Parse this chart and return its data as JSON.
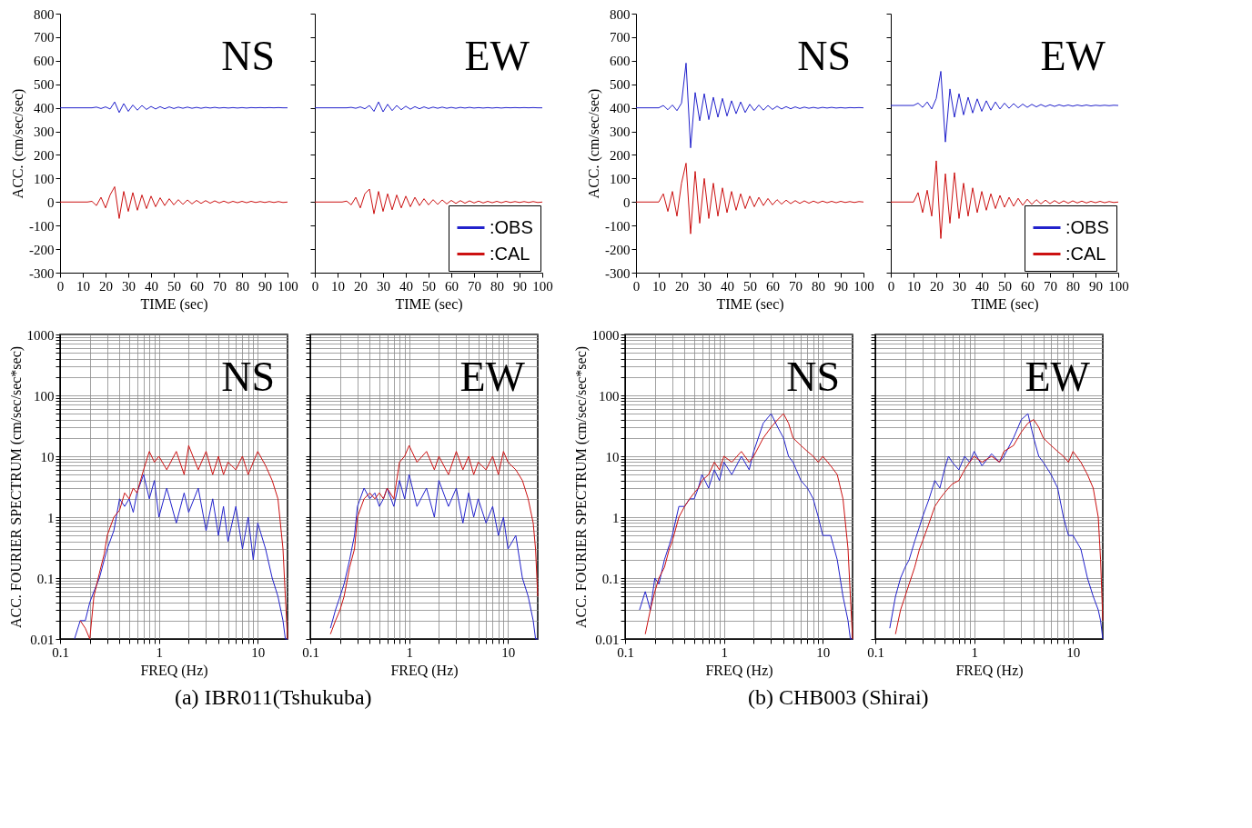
{
  "chart_data": [
    {
      "type": "line",
      "title": "NS",
      "xlabel": "TIME (sec)",
      "ylabel": "ACC. (cm/sec/sec)",
      "xlim": [
        0,
        100
      ],
      "ylim": [
        -300,
        800
      ],
      "xticks": [
        0,
        10,
        20,
        30,
        40,
        50,
        60,
        70,
        80,
        90,
        100
      ],
      "yticks": [
        -300,
        -200,
        -100,
        0,
        100,
        200,
        300,
        400,
        500,
        600,
        700,
        800
      ],
      "x": [
        0,
        2,
        4,
        6,
        8,
        10,
        12,
        14,
        16,
        18,
        20,
        22,
        24,
        26,
        28,
        30,
        32,
        34,
        36,
        38,
        40,
        42,
        44,
        46,
        48,
        50,
        52,
        54,
        56,
        58,
        60,
        62,
        64,
        66,
        68,
        70,
        72,
        74,
        76,
        78,
        80,
        82,
        84,
        86,
        88,
        90,
        92,
        94,
        96,
        98,
        100
      ],
      "series": [
        {
          "color": "#2222cc",
          "values": [
            400,
            400,
            400,
            400,
            400,
            400,
            400,
            400,
            403,
            397,
            404,
            395,
            425,
            380,
            418,
            385,
            412,
            390,
            410,
            393,
            406,
            395,
            405,
            396,
            404,
            397,
            403,
            398,
            403,
            398,
            402,
            398,
            402,
            399,
            402,
            399,
            401,
            399,
            401,
            399,
            401,
            399,
            401,
            400,
            401,
            400,
            401,
            400,
            401,
            400,
            400
          ]
        },
        {
          "color": "#cc1111",
          "values": [
            0,
            0,
            0,
            0,
            0,
            0,
            0,
            3,
            -15,
            20,
            -25,
            30,
            65,
            -70,
            45,
            -40,
            40,
            -35,
            30,
            -28,
            25,
            -20,
            18,
            -15,
            14,
            -12,
            10,
            -10,
            9,
            -8,
            7,
            -6,
            6,
            -5,
            5,
            -4,
            4,
            -4,
            3,
            -3,
            3,
            -3,
            3,
            -2,
            2,
            -2,
            2,
            -2,
            2,
            -2,
            0
          ]
        }
      ]
    },
    {
      "type": "line",
      "title": "EW",
      "xlabel": "TIME (sec)",
      "xlim": [
        0,
        100
      ],
      "ylim": [
        -300,
        800
      ],
      "xticks": [
        0,
        10,
        20,
        30,
        40,
        50,
        60,
        70,
        80,
        90,
        100
      ],
      "yticks": [
        -300,
        -200,
        -100,
        0,
        100,
        200,
        300,
        400,
        500,
        600,
        700,
        800
      ],
      "tick_labels": "x",
      "legend": "bottom right",
      "x": [
        0,
        2,
        4,
        6,
        8,
        10,
        12,
        14,
        16,
        18,
        20,
        22,
        24,
        26,
        28,
        30,
        32,
        34,
        36,
        38,
        40,
        42,
        44,
        46,
        48,
        50,
        52,
        54,
        56,
        58,
        60,
        62,
        64,
        66,
        68,
        70,
        72,
        74,
        76,
        78,
        80,
        82,
        84,
        86,
        88,
        90,
        92,
        94,
        96,
        98,
        100
      ],
      "series": [
        {
          "name": ":OBS",
          "color": "#2222cc",
          "values": [
            400,
            400,
            400,
            400,
            400,
            400,
            400,
            400,
            402,
            398,
            404,
            396,
            410,
            385,
            425,
            383,
            415,
            388,
            410,
            392,
            407,
            394,
            405,
            396,
            404,
            397,
            403,
            398,
            403,
            398,
            402,
            398,
            402,
            399,
            402,
            399,
            401,
            399,
            401,
            399,
            401,
            399,
            401,
            400,
            401,
            400,
            401,
            400,
            401,
            400,
            400
          ]
        },
        {
          "name": ":CAL",
          "color": "#cc1111",
          "values": [
            0,
            0,
            0,
            0,
            0,
            0,
            0,
            4,
            -12,
            20,
            -25,
            35,
            55,
            -50,
            45,
            -40,
            35,
            -33,
            30,
            -25,
            25,
            -20,
            20,
            -15,
            14,
            -12,
            10,
            -10,
            9,
            -8,
            7,
            -6,
            6,
            -5,
            5,
            -4,
            4,
            -4,
            3,
            -3,
            3,
            -3,
            3,
            -2,
            2,
            -2,
            2,
            -2,
            2,
            -2,
            0
          ]
        }
      ]
    },
    {
      "type": "line",
      "title": "NS",
      "xlabel": "TIME (sec)",
      "ylabel": "ACC. (cm/sec/sec)",
      "xlim": [
        0,
        100
      ],
      "ylim": [
        -300,
        800
      ],
      "xticks": [
        0,
        10,
        20,
        30,
        40,
        50,
        60,
        70,
        80,
        90,
        100
      ],
      "yticks": [
        -300,
        -200,
        -100,
        0,
        100,
        200,
        300,
        400,
        500,
        600,
        700,
        800
      ],
      "x": [
        0,
        2,
        4,
        6,
        8,
        10,
        12,
        14,
        16,
        18,
        20,
        22,
        24,
        26,
        28,
        30,
        32,
        34,
        36,
        38,
        40,
        42,
        44,
        46,
        48,
        50,
        52,
        54,
        56,
        58,
        60,
        62,
        64,
        66,
        68,
        70,
        72,
        74,
        76,
        78,
        80,
        82,
        84,
        86,
        88,
        90,
        92,
        94,
        96,
        98,
        100
      ],
      "series": [
        {
          "color": "#2222cc",
          "values": [
            400,
            400,
            400,
            400,
            400,
            400,
            410,
            392,
            412,
            388,
            420,
            590,
            230,
            465,
            345,
            460,
            350,
            445,
            360,
            440,
            365,
            430,
            375,
            425,
            380,
            415,
            388,
            412,
            390,
            410,
            393,
            407,
            395,
            405,
            396,
            404,
            397,
            403,
            398,
            402,
            398,
            402,
            399,
            402,
            399,
            401,
            399,
            401,
            400,
            401,
            400
          ]
        },
        {
          "color": "#cc1111",
          "values": [
            0,
            0,
            0,
            0,
            0,
            0,
            35,
            -40,
            45,
            -60,
            80,
            165,
            -135,
            130,
            -90,
            100,
            -70,
            80,
            -60,
            60,
            -45,
            45,
            -35,
            35,
            -28,
            25,
            -20,
            20,
            -15,
            15,
            -12,
            10,
            -9,
            8,
            -7,
            6,
            -6,
            5,
            -5,
            4,
            -4,
            4,
            -3,
            3,
            -3,
            3,
            -2,
            2,
            -2,
            2,
            0
          ]
        }
      ]
    },
    {
      "type": "line",
      "title": "EW",
      "xlabel": "TIME (sec)",
      "xlim": [
        0,
        100
      ],
      "ylim": [
        -300,
        800
      ],
      "xticks": [
        0,
        10,
        20,
        30,
        40,
        50,
        60,
        70,
        80,
        90,
        100
      ],
      "yticks": [
        -300,
        -200,
        -100,
        0,
        100,
        200,
        300,
        400,
        500,
        600,
        700,
        800
      ],
      "tick_labels": "x",
      "legend": "bottom right",
      "x": [
        0,
        2,
        4,
        6,
        8,
        10,
        12,
        14,
        16,
        18,
        20,
        22,
        24,
        26,
        28,
        30,
        32,
        34,
        36,
        38,
        40,
        42,
        44,
        46,
        48,
        50,
        52,
        54,
        56,
        58,
        60,
        62,
        64,
        66,
        68,
        70,
        72,
        74,
        76,
        78,
        80,
        82,
        84,
        86,
        88,
        90,
        92,
        94,
        96,
        98,
        100
      ],
      "series": [
        {
          "name": ":OBS",
          "color": "#2222cc",
          "values": [
            410,
            410,
            410,
            410,
            410,
            410,
            420,
            402,
            425,
            395,
            440,
            555,
            255,
            480,
            360,
            460,
            370,
            445,
            378,
            438,
            385,
            430,
            390,
            425,
            395,
            420,
            398,
            418,
            400,
            416,
            402,
            415,
            404,
            414,
            405,
            413,
            406,
            413,
            407,
            412,
            407,
            412,
            408,
            412,
            408,
            411,
            409,
            411,
            409,
            411,
            410
          ]
        },
        {
          "name": ":CAL",
          "color": "#cc1111",
          "values": [
            0,
            0,
            0,
            0,
            0,
            0,
            40,
            -45,
            50,
            -60,
            175,
            -155,
            120,
            -90,
            125,
            -70,
            80,
            -60,
            60,
            -45,
            45,
            -35,
            35,
            -28,
            28,
            -22,
            20,
            -18,
            16,
            -14,
            12,
            -10,
            10,
            -8,
            8,
            -7,
            6,
            -6,
            5,
            -5,
            5,
            -4,
            4,
            -4,
            3,
            -3,
            3,
            -3,
            2,
            -2,
            0
          ]
        }
      ]
    },
    {
      "type": "line",
      "title": "NS",
      "xlabel": "FREQ (Hz)",
      "ylabel": "ACC. FOURIER SPECTRUM (cm/sec/sec*sec)",
      "log": "xy",
      "grid": true,
      "xlim": [
        0.1,
        20
      ],
      "ylim": [
        0.01,
        1000
      ],
      "xticks": [
        0.1,
        {
          "value": 0.2,
          "label": null
        },
        {
          "value": 0.3,
          "label": null
        },
        {
          "value": 0.4,
          "label": null
        },
        {
          "value": 0.5,
          "label": null
        },
        {
          "value": 0.6,
          "label": null
        },
        {
          "value": 0.7,
          "label": null
        },
        {
          "value": 0.8,
          "label": null
        },
        {
          "value": 0.9,
          "label": null
        },
        1,
        {
          "value": 2,
          "label": null
        },
        {
          "value": 3,
          "label": null
        },
        {
          "value": 4,
          "label": null
        },
        {
          "value": 5,
          "label": null
        },
        {
          "value": 6,
          "label": null
        },
        {
          "value": 7,
          "label": null
        },
        {
          "value": 8,
          "label": null
        },
        {
          "value": 9,
          "label": null
        },
        10
      ],
      "yticks": [
        0.01,
        {
          "value": 0.02,
          "label": null
        },
        {
          "value": 0.03,
          "label": null
        },
        {
          "value": 0.04,
          "label": null
        },
        {
          "value": 0.05,
          "label": null
        },
        {
          "value": 0.06,
          "label": null
        },
        {
          "value": 0.07,
          "label": null
        },
        {
          "value": 0.08,
          "label": null
        },
        {
          "value": 0.09,
          "label": null
        },
        0.1,
        {
          "value": 0.2,
          "label": null
        },
        {
          "value": 0.3,
          "label": null
        },
        {
          "value": 0.4,
          "label": null
        },
        {
          "value": 0.5,
          "label": null
        },
        {
          "value": 0.6,
          "label": null
        },
        {
          "value": 0.7,
          "label": null
        },
        {
          "value": 0.8,
          "label": null
        },
        {
          "value": 0.9,
          "label": null
        },
        1,
        {
          "value": 2,
          "label": null
        },
        {
          "value": 3,
          "label": null
        },
        {
          "value": 4,
          "label": null
        },
        {
          "value": 5,
          "label": null
        },
        {
          "value": 6,
          "label": null
        },
        {
          "value": 7,
          "label": null
        },
        {
          "value": 8,
          "label": null
        },
        {
          "value": 9,
          "label": null
        },
        10,
        {
          "value": 20,
          "label": null
        },
        {
          "value": 30,
          "label": null
        },
        {
          "value": 40,
          "label": null
        },
        {
          "value": 50,
          "label": null
        },
        {
          "value": 60,
          "label": null
        },
        {
          "value": 70,
          "label": null
        },
        {
          "value": 80,
          "label": null
        },
        {
          "value": 90,
          "label": null
        },
        100,
        {
          "value": 200,
          "label": null
        },
        {
          "value": 300,
          "label": null
        },
        {
          "value": 400,
          "label": null
        },
        {
          "value": 500,
          "label": null
        },
        {
          "value": 600,
          "label": null
        },
        {
          "value": 700,
          "label": null
        },
        {
          "value": 800,
          "label": null
        },
        {
          "value": 900,
          "label": null
        },
        1000
      ],
      "x": [
        0.14,
        0.16,
        0.18,
        0.2,
        0.22,
        0.25,
        0.28,
        0.3,
        0.35,
        0.4,
        0.45,
        0.5,
        0.55,
        0.6,
        0.7,
        0.8,
        0.9,
        1,
        1.2,
        1.5,
        1.8,
        2,
        2.5,
        3,
        3.5,
        4,
        4.5,
        5,
        6,
        7,
        8,
        9,
        10,
        12,
        14,
        16,
        18,
        19,
        20
      ],
      "series": [
        {
          "color": "#2222cc",
          "values": [
            0.01,
            0.02,
            0.02,
            0.04,
            0.06,
            0.1,
            0.2,
            0.3,
            0.6,
            2,
            1.5,
            2,
            1.2,
            2.5,
            5,
            2,
            4,
            1,
            3,
            0.8,
            2.5,
            1.2,
            3,
            0.6,
            2,
            0.5,
            1.5,
            0.4,
            1.5,
            0.3,
            1,
            0.2,
            0.8,
            0.3,
            0.1,
            0.05,
            0.02,
            0.01,
            0.01
          ]
        },
        {
          "color": "#cc1111",
          "values": [
            null,
            0.02,
            0.015,
            0.01,
            0.05,
            0.12,
            0.25,
            0.5,
            1,
            1.3,
            2.5,
            2,
            3,
            2.5,
            6,
            12,
            8,
            10,
            6,
            12,
            5,
            15,
            6,
            12,
            5,
            10,
            5,
            8,
            6,
            10,
            5,
            8,
            12,
            7,
            4,
            2,
            0.3,
            0.05,
            0.01
          ]
        }
      ]
    },
    {
      "type": "line",
      "title": "EW",
      "xlabel": "FREQ (Hz)",
      "log": "xy",
      "grid": true,
      "tick_labels": "x",
      "xlim": [
        0.1,
        20
      ],
      "ylim": [
        0.01,
        1000
      ],
      "annotations": [
        "(a) IBR011(Tshukuba)"
      ],
      "xticks": [
        0.1,
        {
          "value": 0.2,
          "label": null
        },
        {
          "value": 0.3,
          "label": null
        },
        {
          "value": 0.4,
          "label": null
        },
        {
          "value": 0.5,
          "label": null
        },
        {
          "value": 0.6,
          "label": null
        },
        {
          "value": 0.7,
          "label": null
        },
        {
          "value": 0.8,
          "label": null
        },
        {
          "value": 0.9,
          "label": null
        },
        1,
        {
          "value": 2,
          "label": null
        },
        {
          "value": 3,
          "label": null
        },
        {
          "value": 4,
          "label": null
        },
        {
          "value": 5,
          "label": null
        },
        {
          "value": 6,
          "label": null
        },
        {
          "value": 7,
          "label": null
        },
        {
          "value": 8,
          "label": null
        },
        {
          "value": 9,
          "label": null
        },
        10
      ],
      "yticks": [
        0.01,
        {
          "value": 0.02,
          "label": null
        },
        {
          "value": 0.03,
          "label": null
        },
        {
          "value": 0.04,
          "label": null
        },
        {
          "value": 0.05,
          "label": null
        },
        {
          "value": 0.06,
          "label": null
        },
        {
          "value": 0.07,
          "label": null
        },
        {
          "value": 0.08,
          "label": null
        },
        {
          "value": 0.09,
          "label": null
        },
        0.1,
        {
          "value": 0.2,
          "label": null
        },
        {
          "value": 0.3,
          "label": null
        },
        {
          "value": 0.4,
          "label": null
        },
        {
          "value": 0.5,
          "label": null
        },
        {
          "value": 0.6,
          "label": null
        },
        {
          "value": 0.7,
          "label": null
        },
        {
          "value": 0.8,
          "label": null
        },
        {
          "value": 0.9,
          "label": null
        },
        1,
        {
          "value": 2,
          "label": null
        },
        {
          "value": 3,
          "label": null
        },
        {
          "value": 4,
          "label": null
        },
        {
          "value": 5,
          "label": null
        },
        {
          "value": 6,
          "label": null
        },
        {
          "value": 7,
          "label": null
        },
        {
          "value": 8,
          "label": null
        },
        {
          "value": 9,
          "label": null
        },
        10,
        {
          "value": 20,
          "label": null
        },
        {
          "value": 30,
          "label": null
        },
        {
          "value": 40,
          "label": null
        },
        {
          "value": 50,
          "label": null
        },
        {
          "value": 60,
          "label": null
        },
        {
          "value": 70,
          "label": null
        },
        {
          "value": 80,
          "label": null
        },
        {
          "value": 90,
          "label": null
        },
        100,
        {
          "value": 200,
          "label": null
        },
        {
          "value": 300,
          "label": null
        },
        {
          "value": 400,
          "label": null
        },
        {
          "value": 500,
          "label": null
        },
        {
          "value": 600,
          "label": null
        },
        {
          "value": 700,
          "label": null
        },
        {
          "value": 800,
          "label": null
        },
        {
          "value": 900,
          "label": null
        },
        1000
      ],
      "x": [
        0.16,
        0.18,
        0.2,
        0.22,
        0.25,
        0.28,
        0.3,
        0.35,
        0.4,
        0.45,
        0.5,
        0.55,
        0.6,
        0.7,
        0.8,
        0.9,
        1,
        1.2,
        1.5,
        1.8,
        2,
        2.5,
        3,
        3.5,
        4,
        4.5,
        5,
        6,
        7,
        8,
        9,
        10,
        12,
        14,
        16,
        18,
        19,
        20
      ],
      "series": [
        {
          "color": "#2222cc",
          "values": [
            0.015,
            0.03,
            0.05,
            0.08,
            0.2,
            0.5,
            1.5,
            3,
            2,
            2.5,
            1.5,
            2,
            3,
            1.5,
            4,
            2,
            5,
            1.5,
            3,
            1,
            4,
            1.5,
            3,
            0.8,
            2.5,
            1,
            2,
            0.8,
            1.5,
            0.5,
            1,
            0.3,
            0.5,
            0.1,
            0.05,
            0.02,
            0.01,
            0.01
          ]
        },
        {
          "color": "#cc1111",
          "values": [
            0.012,
            0.02,
            0.03,
            0.05,
            0.15,
            0.3,
            1,
            2,
            2.5,
            2,
            2.5,
            2,
            3,
            2,
            8,
            10,
            15,
            8,
            12,
            6,
            10,
            5,
            12,
            6,
            10,
            5,
            8,
            6,
            10,
            5,
            12,
            8,
            6,
            4,
            2,
            0.8,
            0.3,
            0.05
          ]
        }
      ]
    },
    {
      "type": "line",
      "title": "NS",
      "xlabel": "FREQ (Hz)",
      "ylabel": "ACC. FOURIER SPECTRUM (cm/sec/sec*sec)",
      "log": "xy",
      "grid": true,
      "xlim": [
        0.1,
        20
      ],
      "ylim": [
        0.01,
        1000
      ],
      "xticks": [
        0.1,
        {
          "value": 0.2,
          "label": null
        },
        {
          "value": 0.3,
          "label": null
        },
        {
          "value": 0.4,
          "label": null
        },
        {
          "value": 0.5,
          "label": null
        },
        {
          "value": 0.6,
          "label": null
        },
        {
          "value": 0.7,
          "label": null
        },
        {
          "value": 0.8,
          "label": null
        },
        {
          "value": 0.9,
          "label": null
        },
        1,
        {
          "value": 2,
          "label": null
        },
        {
          "value": 3,
          "label": null
        },
        {
          "value": 4,
          "label": null
        },
        {
          "value": 5,
          "label": null
        },
        {
          "value": 6,
          "label": null
        },
        {
          "value": 7,
          "label": null
        },
        {
          "value": 8,
          "label": null
        },
        {
          "value": 9,
          "label": null
        },
        10
      ],
      "yticks": [
        0.01,
        {
          "value": 0.02,
          "label": null
        },
        {
          "value": 0.03,
          "label": null
        },
        {
          "value": 0.04,
          "label": null
        },
        {
          "value": 0.05,
          "label": null
        },
        {
          "value": 0.06,
          "label": null
        },
        {
          "value": 0.07,
          "label": null
        },
        {
          "value": 0.08,
          "label": null
        },
        {
          "value": 0.09,
          "label": null
        },
        0.1,
        {
          "value": 0.2,
          "label": null
        },
        {
          "value": 0.3,
          "label": null
        },
        {
          "value": 0.4,
          "label": null
        },
        {
          "value": 0.5,
          "label": null
        },
        {
          "value": 0.6,
          "label": null
        },
        {
          "value": 0.7,
          "label": null
        },
        {
          "value": 0.8,
          "label": null
        },
        {
          "value": 0.9,
          "label": null
        },
        1,
        {
          "value": 2,
          "label": null
        },
        {
          "value": 3,
          "label": null
        },
        {
          "value": 4,
          "label": null
        },
        {
          "value": 5,
          "label": null
        },
        {
          "value": 6,
          "label": null
        },
        {
          "value": 7,
          "label": null
        },
        {
          "value": 8,
          "label": null
        },
        {
          "value": 9,
          "label": null
        },
        10,
        {
          "value": 20,
          "label": null
        },
        {
          "value": 30,
          "label": null
        },
        {
          "value": 40,
          "label": null
        },
        {
          "value": 50,
          "label": null
        },
        {
          "value": 60,
          "label": null
        },
        {
          "value": 70,
          "label": null
        },
        {
          "value": 80,
          "label": null
        },
        {
          "value": 90,
          "label": null
        },
        100,
        {
          "value": 200,
          "label": null
        },
        {
          "value": 300,
          "label": null
        },
        {
          "value": 400,
          "label": null
        },
        {
          "value": 500,
          "label": null
        },
        {
          "value": 600,
          "label": null
        },
        {
          "value": 700,
          "label": null
        },
        {
          "value": 800,
          "label": null
        },
        {
          "value": 900,
          "label": null
        },
        1000
      ],
      "x": [
        0.14,
        0.16,
        0.18,
        0.2,
        0.22,
        0.25,
        0.28,
        0.3,
        0.35,
        0.4,
        0.45,
        0.5,
        0.55,
        0.6,
        0.7,
        0.8,
        0.9,
        1,
        1.2,
        1.5,
        1.8,
        2,
        2.5,
        3,
        3.5,
        4,
        4.5,
        5,
        6,
        7,
        8,
        9,
        10,
        12,
        14,
        16,
        18,
        19,
        20
      ],
      "series": [
        {
          "color": "#2222cc",
          "values": [
            0.03,
            0.06,
            0.03,
            0.1,
            0.08,
            0.2,
            0.35,
            0.5,
            1.5,
            1.5,
            2,
            2,
            3,
            5,
            3,
            6,
            4,
            8,
            5,
            10,
            6,
            12,
            35,
            50,
            30,
            20,
            10,
            8,
            4,
            3,
            2,
            1,
            0.5,
            0.5,
            0.2,
            0.05,
            0.02,
            0.01,
            0.01
          ]
        },
        {
          "color": "#cc1111",
          "values": [
            null,
            0.012,
            0.03,
            0.06,
            0.1,
            0.15,
            0.3,
            0.4,
            1,
            1.5,
            2,
            2.5,
            3,
            4,
            5,
            8,
            6,
            10,
            8,
            12,
            8,
            10,
            20,
            30,
            40,
            50,
            35,
            20,
            15,
            12,
            10,
            8,
            10,
            7,
            5,
            2,
            0.3,
            0.05,
            0.01
          ]
        }
      ]
    },
    {
      "type": "line",
      "title": "EW",
      "xlabel": "FREQ (Hz)",
      "log": "xy",
      "grid": true,
      "tick_labels": "x",
      "xlim": [
        0.1,
        20
      ],
      "ylim": [
        0.01,
        1000
      ],
      "annotations": [
        "(b) CHB003 (Shirai)"
      ],
      "xticks": [
        0.1,
        {
          "value": 0.2,
          "label": null
        },
        {
          "value": 0.3,
          "label": null
        },
        {
          "value": 0.4,
          "label": null
        },
        {
          "value": 0.5,
          "label": null
        },
        {
          "value": 0.6,
          "label": null
        },
        {
          "value": 0.7,
          "label": null
        },
        {
          "value": 0.8,
          "label": null
        },
        {
          "value": 0.9,
          "label": null
        },
        1,
        {
          "value": 2,
          "label": null
        },
        {
          "value": 3,
          "label": null
        },
        {
          "value": 4,
          "label": null
        },
        {
          "value": 5,
          "label": null
        },
        {
          "value": 6,
          "label": null
        },
        {
          "value": 7,
          "label": null
        },
        {
          "value": 8,
          "label": null
        },
        {
          "value": 9,
          "label": null
        },
        10
      ],
      "yticks": [
        0.01,
        {
          "value": 0.02,
          "label": null
        },
        {
          "value": 0.03,
          "label": null
        },
        {
          "value": 0.04,
          "label": null
        },
        {
          "value": 0.05,
          "label": null
        },
        {
          "value": 0.06,
          "label": null
        },
        {
          "value": 0.07,
          "label": null
        },
        {
          "value": 0.08,
          "label": null
        },
        {
          "value": 0.09,
          "label": null
        },
        0.1,
        {
          "value": 0.2,
          "label": null
        },
        {
          "value": 0.3,
          "label": null
        },
        {
          "value": 0.4,
          "label": null
        },
        {
          "value": 0.5,
          "label": null
        },
        {
          "value": 0.6,
          "label": null
        },
        {
          "value": 0.7,
          "label": null
        },
        {
          "value": 0.8,
          "label": null
        },
        {
          "value": 0.9,
          "label": null
        },
        1,
        {
          "value": 2,
          "label": null
        },
        {
          "value": 3,
          "label": null
        },
        {
          "value": 4,
          "label": null
        },
        {
          "value": 5,
          "label": null
        },
        {
          "value": 6,
          "label": null
        },
        {
          "value": 7,
          "label": null
        },
        {
          "value": 8,
          "label": null
        },
        {
          "value": 9,
          "label": null
        },
        10,
        {
          "value": 20,
          "label": null
        },
        {
          "value": 30,
          "label": null
        },
        {
          "value": 40,
          "label": null
        },
        {
          "value": 50,
          "label": null
        },
        {
          "value": 60,
          "label": null
        },
        {
          "value": 70,
          "label": null
        },
        {
          "value": 80,
          "label": null
        },
        {
          "value": 90,
          "label": null
        },
        100,
        {
          "value": 200,
          "label": null
        },
        {
          "value": 300,
          "label": null
        },
        {
          "value": 400,
          "label": null
        },
        {
          "value": 500,
          "label": null
        },
        {
          "value": 600,
          "label": null
        },
        {
          "value": 700,
          "label": null
        },
        {
          "value": 800,
          "label": null
        },
        {
          "value": 900,
          "label": null
        },
        1000
      ],
      "x": [
        0.14,
        0.16,
        0.18,
        0.2,
        0.22,
        0.25,
        0.28,
        0.3,
        0.35,
        0.4,
        0.45,
        0.5,
        0.55,
        0.6,
        0.7,
        0.8,
        0.9,
        1,
        1.2,
        1.5,
        1.8,
        2,
        2.5,
        3,
        3.5,
        4,
        4.5,
        5,
        6,
        7,
        8,
        9,
        10,
        12,
        14,
        16,
        18,
        19,
        20
      ],
      "series": [
        {
          "color": "#2222cc",
          "values": [
            0.015,
            0.05,
            0.1,
            0.15,
            0.2,
            0.4,
            0.7,
            1,
            2,
            4,
            3,
            6,
            10,
            8,
            6,
            10,
            8,
            12,
            7,
            11,
            8,
            10,
            20,
            40,
            50,
            20,
            10,
            8,
            5,
            3,
            1,
            0.5,
            0.5,
            0.3,
            0.1,
            0.05,
            0.03,
            0.02,
            0.01
          ]
        },
        {
          "color": "#cc1111",
          "values": [
            null,
            0.012,
            0.03,
            0.05,
            0.08,
            0.15,
            0.3,
            0.4,
            0.8,
            1.5,
            2,
            2.5,
            3,
            3.5,
            4,
            6,
            8,
            10,
            8,
            10,
            8,
            12,
            15,
            25,
            35,
            40,
            30,
            20,
            15,
            12,
            10,
            8,
            12,
            8,
            5,
            3,
            1,
            0.2,
            0.02
          ]
        }
      ]
    }
  ]
}
